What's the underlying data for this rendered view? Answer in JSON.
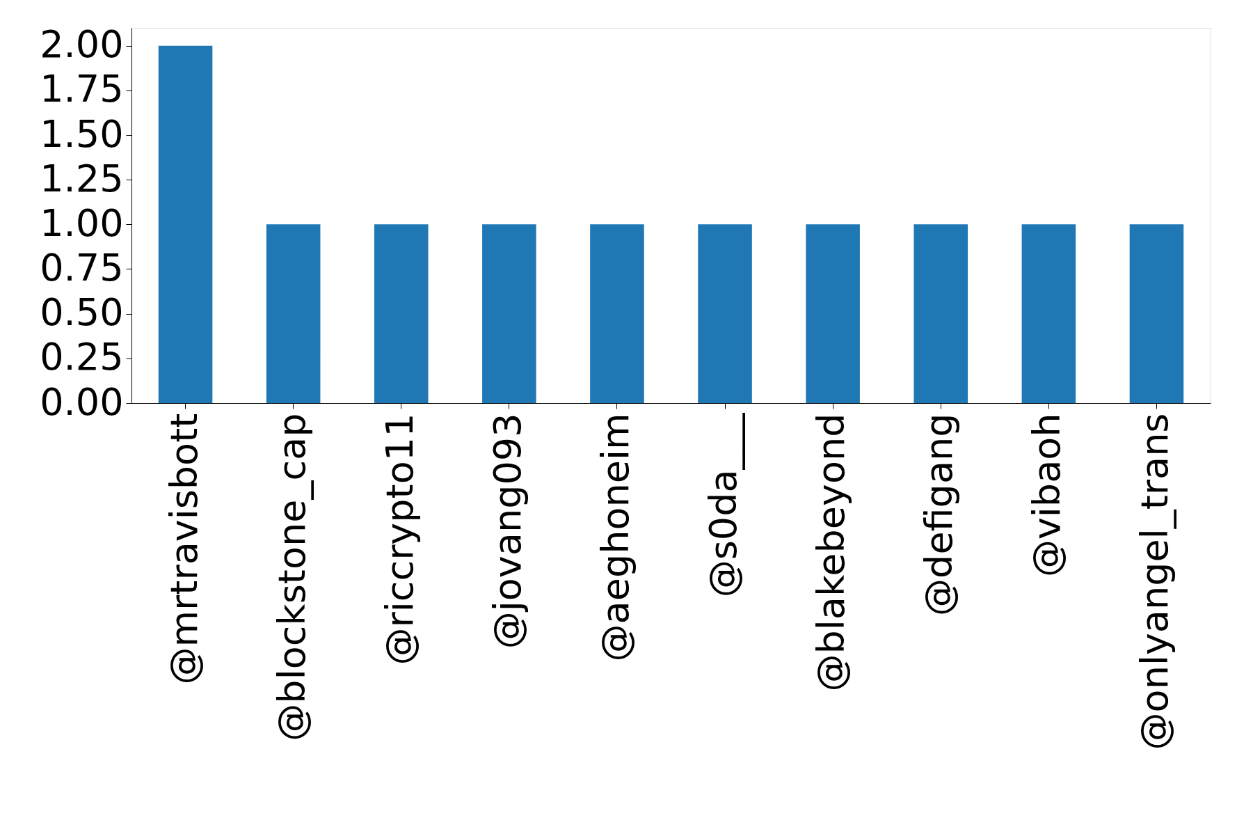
{
  "chart_data": {
    "type": "bar",
    "categories": [
      "@mrtravisbott",
      "@blockstone_cap",
      "@riccrypto11",
      "@jovang093",
      "@aeghoneim",
      "@s0da___",
      "@blakebeyond",
      "@defigang",
      "@vibaoh",
      "@onlyangel_trans"
    ],
    "values": [
      2,
      1,
      1,
      1,
      1,
      1,
      1,
      1,
      1,
      1
    ],
    "color": "#1f77b4",
    "ylim": [
      0,
      2.1
    ],
    "yticks": [
      {
        "value": 0,
        "label": "0.00"
      },
      {
        "value": 0.25,
        "label": "0.25"
      },
      {
        "value": 0.5,
        "label": "0.50"
      },
      {
        "value": 0.75,
        "label": "0.75"
      },
      {
        "value": 1,
        "label": "1.00"
      },
      {
        "value": 1.25,
        "label": "1.25"
      },
      {
        "value": 1.5,
        "label": "1.50"
      },
      {
        "value": 1.75,
        "label": "1.75"
      },
      {
        "value": 2,
        "label": "2.00"
      }
    ],
    "grid": false
  }
}
